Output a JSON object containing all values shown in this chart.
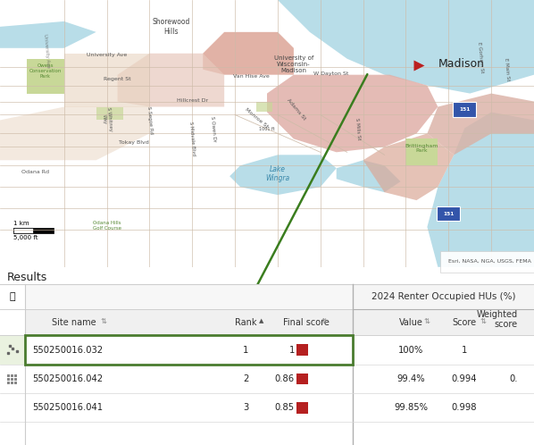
{
  "map_bg": "#ede0ce",
  "water_color": "#b8dde8",
  "pink_light": "#e8c4b8",
  "pink_medium": "#dba898",
  "tan_light": "#e8d8c0",
  "green_park": "#c8d8a0",
  "road_color": "#cdbba8",
  "results_bg": "#ffffff",
  "title": "Results",
  "col_right_group": "2024 Renter Occupied HUs (%)",
  "arrow_color": "#3a7d1e",
  "madison_label": "Madison",
  "map_attribution": "Esri, NASA, NGA, USGS, FEMA",
  "selected_border": "#4a7c2f",
  "red_square": "#b52020",
  "rows": [
    {
      "site": "550250016.032",
      "rank": "1",
      "final": "1",
      "value": "100%",
      "score": "1",
      "weighted": "",
      "selected": true
    },
    {
      "site": "550250016.042",
      "rank": "2",
      "final": "0.86",
      "value": "99.4%",
      "score": "0.994",
      "weighted": "0.",
      "selected": false
    },
    {
      "site": "550250016.041",
      "rank": "3",
      "final": "0.85",
      "value": "99.85%",
      "score": "0.998",
      "weighted": "",
      "selected": false
    }
  ]
}
